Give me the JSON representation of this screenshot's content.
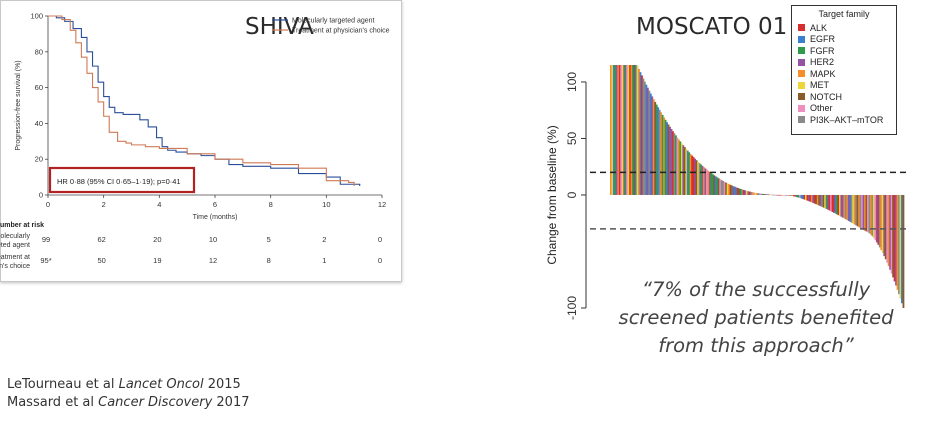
{
  "shiva": {
    "title": "SHIVA",
    "chart_data": {
      "type": "line",
      "xlabel": "Time (months)",
      "ylabel": "Progression-free survival (%)",
      "xlim": [
        0,
        12
      ],
      "ylim": [
        0,
        100
      ],
      "xticks": [
        0,
        2,
        4,
        6,
        8,
        10,
        12
      ],
      "yticks": [
        0,
        20,
        40,
        60,
        80,
        100
      ],
      "series": [
        {
          "name": "Molecularly targeted agent",
          "color": "#2b4e9a",
          "x": [
            0,
            0.3,
            0.6,
            0.9,
            1.2,
            1.4,
            1.6,
            1.8,
            2.0,
            2.2,
            2.4,
            2.7,
            3.0,
            3.3,
            3.6,
            3.9,
            4.1,
            4.3,
            4.6,
            5.0,
            5.5,
            6.0,
            6.5,
            7.0,
            8.0,
            9.0,
            10.0,
            10.5,
            11.2
          ],
          "y": [
            100,
            99,
            97,
            93,
            88,
            80,
            72,
            63,
            55,
            49,
            46,
            45,
            45,
            42,
            38,
            32,
            27,
            25,
            24,
            23,
            22,
            20,
            17,
            16,
            15,
            12,
            10,
            6,
            5
          ]
        },
        {
          "name": "Treatment at physician's choice",
          "color": "#d07a55",
          "x": [
            0,
            0.5,
            0.8,
            1.0,
            1.2,
            1.4,
            1.6,
            1.8,
            2.0,
            2.2,
            2.5,
            2.8,
            3.0,
            3.5,
            4.0,
            5.0,
            6.0,
            7.0,
            8.0,
            9.0,
            10.0,
            10.8,
            11.0
          ],
          "y": [
            100,
            98,
            92,
            85,
            77,
            68,
            60,
            52,
            44,
            35,
            30,
            29,
            28,
            27,
            26,
            23,
            20,
            18,
            17,
            15,
            8,
            7,
            5
          ]
        }
      ]
    },
    "hr_box": "HR 0·88 (95% CI 0·65–1·19); p=0·41",
    "risk": {
      "header": "Number at risk",
      "rows": [
        {
          "label1": "Molecularly",
          "label2": "targeted agent",
          "values": [
            "99",
            "62",
            "20",
            "10",
            "5",
            "2",
            "0"
          ]
        },
        {
          "label1": "Treatment at",
          "label2": "physician's choice",
          "values": [
            "95*",
            "50",
            "19",
            "12",
            "8",
            "1",
            "0"
          ]
        }
      ]
    }
  },
  "moscato": {
    "title": "MOSCATO 01",
    "chart_data": {
      "type": "bar",
      "ylabel": "Change from baseline (%)",
      "ylim": [
        -100,
        115
      ],
      "yticks": [
        -100,
        0,
        50,
        100
      ],
      "reference_lines": [
        20,
        -30
      ],
      "n_bars": 199,
      "bar_shape": "waterfall descending from about 115% to about -100%"
    },
    "legend": {
      "title": "Target family",
      "items": [
        {
          "label": "ALK",
          "color": "#d62f2f"
        },
        {
          "label": "EGFR",
          "color": "#3b7fd0"
        },
        {
          "label": "FGFR",
          "color": "#2f9a4a"
        },
        {
          "label": "HER2",
          "color": "#9553a3"
        },
        {
          "label": "MAPK",
          "color": "#f58e2b"
        },
        {
          "label": "MET",
          "color": "#ecd63a"
        },
        {
          "label": "NOTCH",
          "color": "#8b5a2b"
        },
        {
          "label": "Other",
          "color": "#ee8fbf"
        },
        {
          "label": "PI3K–AKT–mTOR",
          "color": "#8a8a8a"
        }
      ]
    },
    "quote": "“7% of the successfully screened patients benefited from this approach”"
  },
  "refs": {
    "line1_authors": "LeTourneau et al ",
    "line1_journal": "Lancet Oncol",
    "line1_year": " 2015",
    "line2_authors": "Massard et al ",
    "line2_journal": "Cancer Discovery",
    "line2_year": " 2017"
  }
}
